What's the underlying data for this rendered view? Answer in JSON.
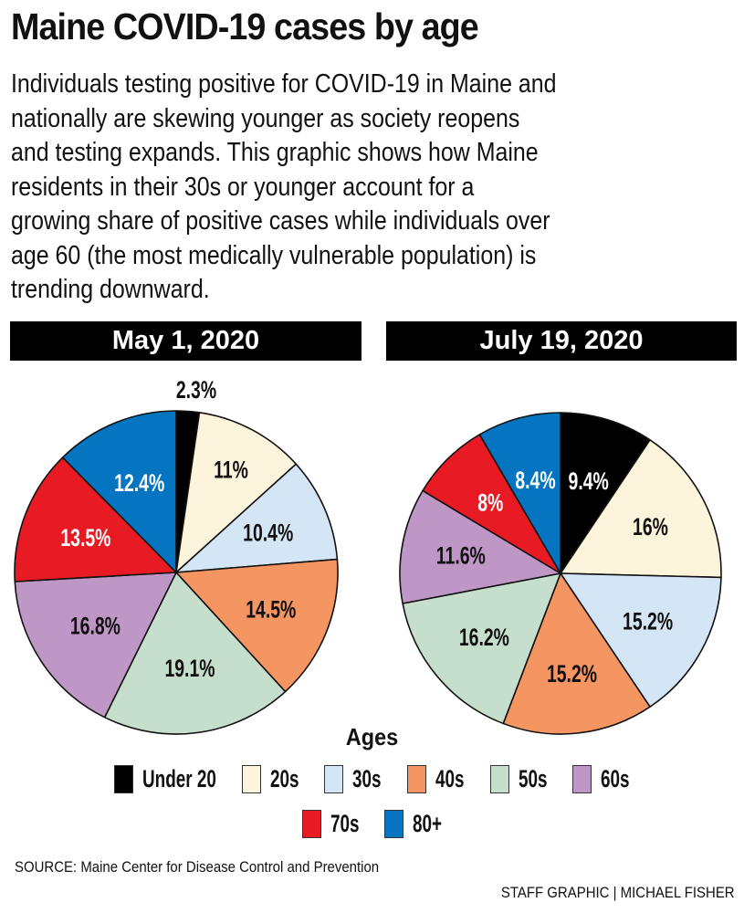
{
  "title": "Maine COVID-19 cases by age",
  "description_lines": [
    "Individuals testing positive for COVID-19 in Maine and",
    "nationally are skewing younger as society reopens",
    "and testing expands. This graphic shows how Maine",
    "residents in their 30s or younger account for a",
    "growing share of positive cases while individuals over",
    "age 60 (the most medically vulnerable population) is",
    "trending downward."
  ],
  "source": "SOURCE: Maine Center for Disease Control and Prevention",
  "credit": "STAFF GRAPHIC | MICHAEL FISHER",
  "chart_data": [
    {
      "type": "pie",
      "title": "May 1, 2020",
      "categories": [
        "Under 20",
        "20s",
        "30s",
        "40s",
        "50s",
        "60s",
        "70s",
        "80+"
      ],
      "values": [
        2.3,
        11,
        10.4,
        14.5,
        19.1,
        16.8,
        13.5,
        12.4
      ],
      "labels": [
        "2.3%",
        "11%",
        "10.4%",
        "14.5%",
        "19.1%",
        "16.8%",
        "13.5%",
        "12.4%"
      ],
      "start": "12 o'clock, clockwise"
    },
    {
      "type": "pie",
      "title": "July 19, 2020",
      "categories": [
        "Under 20",
        "20s",
        "30s",
        "40s",
        "50s",
        "60s",
        "70s",
        "80+"
      ],
      "values": [
        9.4,
        16,
        15.2,
        15.2,
        16.2,
        11.6,
        8,
        8.4
      ],
      "labels": [
        "9.4%",
        "16%",
        "15.2%",
        "15.2%",
        "16.2%",
        "11.6%",
        "8%",
        "8.4%"
      ],
      "start": "12 o'clock, clockwise"
    }
  ],
  "legend": {
    "title": "Ages",
    "items": [
      {
        "label": "Under 20",
        "color": "#000000",
        "text_color": "#ffffff"
      },
      {
        "label": "20s",
        "color": "#fdf4dc",
        "text_color": "#111111"
      },
      {
        "label": "30s",
        "color": "#d4e6f6",
        "text_color": "#111111"
      },
      {
        "label": "40s",
        "color": "#f49562",
        "text_color": "#111111"
      },
      {
        "label": "50s",
        "color": "#c6dfcc",
        "text_color": "#111111"
      },
      {
        "label": "60s",
        "color": "#bf97c6",
        "text_color": "#111111"
      },
      {
        "label": "70s",
        "color": "#e81b24",
        "text_color": "#ffffff"
      },
      {
        "label": "80+",
        "color": "#0574c1",
        "text_color": "#ffffff"
      }
    ]
  }
}
